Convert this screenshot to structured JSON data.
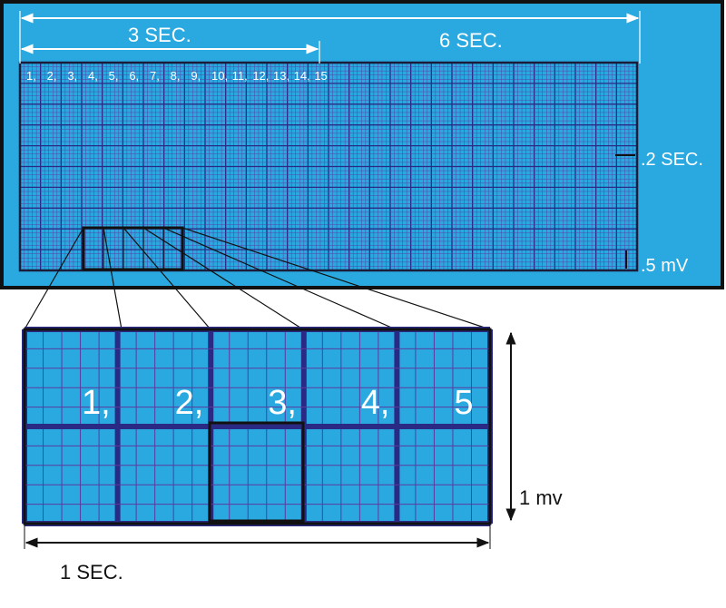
{
  "strip": {
    "label_3sec": "3 SEC.",
    "label_6sec": "6 SEC.",
    "label_02sec": ".2 SEC.",
    "label_05mv": ".5 mV",
    "box_numbers": [
      "1,",
      "2,",
      "3,",
      "4,",
      "5,",
      "6,",
      "7,",
      "8,",
      "9,",
      "10,",
      "11,",
      "12,",
      "13,",
      "14,",
      "15"
    ]
  },
  "zoom": {
    "box_numbers": [
      "1,",
      "2,",
      "3,",
      "4,",
      "5"
    ],
    "label_1sec": "1 SEC.",
    "label_1mv": "1 mv"
  },
  "colors": {
    "paper_blue": "#29a9e0",
    "grid_purple": "#5b3aa0",
    "bold_purple": "#2a2a85",
    "frame": "#111111"
  }
}
